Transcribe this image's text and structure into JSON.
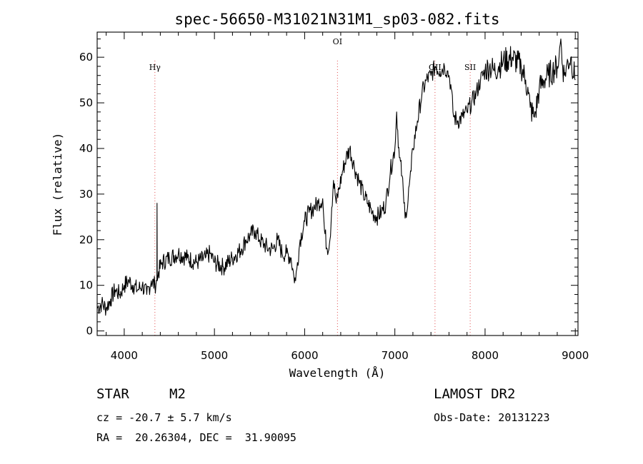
{
  "chart_data": {
    "type": "line",
    "title": "spec-56650-M31021N31M1_sp03-082.fits",
    "xlabel": "Wavelength (Å)",
    "ylabel": "Flux (relative)",
    "xlim": [
      3700,
      9030
    ],
    "ylim": [
      -1,
      65.5
    ],
    "xticks": [
      4000,
      5000,
      6000,
      7000,
      8000,
      9000
    ],
    "yticks": [
      0,
      10,
      20,
      30,
      40,
      50,
      60
    ],
    "grid": false,
    "line_color": "#000000",
    "marker_color": "#e05050",
    "lines": [
      {
        "label": "Hγ",
        "x": 4340
      },
      {
        "label": "OI",
        "x": 6364
      },
      {
        "label": "OII",
        "x": 7445
      },
      {
        "label": "SII",
        "x": 7835
      }
    ],
    "series": [
      {
        "name": "flux",
        "x": [
          3700,
          3750,
          3800,
          3850,
          3900,
          3950,
          4000,
          4050,
          4100,
          4150,
          4200,
          4250,
          4300,
          4340,
          4362,
          4364,
          4366,
          4380,
          4420,
          4500,
          4600,
          4700,
          4800,
          4900,
          4950,
          5000,
          5100,
          5200,
          5300,
          5350,
          5400,
          5450,
          5500,
          5550,
          5600,
          5650,
          5700,
          5750,
          5800,
          5850,
          5880,
          5900,
          5920,
          5950,
          6000,
          6050,
          6100,
          6150,
          6200,
          6220,
          6250,
          6280,
          6300,
          6320,
          6350,
          6380,
          6420,
          6460,
          6500,
          6550,
          6600,
          6650,
          6700,
          6750,
          6800,
          6850,
          6900,
          6950,
          7000,
          7020,
          7050,
          7080,
          7100,
          7120,
          7140,
          7160,
          7180,
          7200,
          7250,
          7300,
          7350,
          7400,
          7450,
          7500,
          7550,
          7580,
          7600,
          7620,
          7650,
          7700,
          7750,
          7800,
          7850,
          7900,
          7950,
          8000,
          8050,
          8100,
          8150,
          8200,
          8300,
          8400,
          8450,
          8480,
          8500,
          8540,
          8560,
          8600,
          8650,
          8700,
          8750,
          8800,
          8820,
          8840,
          8860,
          8880,
          8900,
          8950,
          9000
        ],
        "y": [
          5,
          6,
          5,
          7,
          9,
          8,
          10,
          11,
          10,
          9,
          10,
          8,
          11,
          10,
          11,
          28,
          11,
          13,
          15,
          16,
          17,
          16,
          15,
          16,
          17,
          15,
          14,
          16,
          18,
          20,
          21,
          22,
          20,
          19,
          18,
          18,
          20,
          17,
          17,
          16,
          12,
          11,
          15,
          20,
          24,
          26,
          27,
          28,
          29,
          22,
          18,
          20,
          27,
          33,
          28,
          31,
          35,
          38,
          40,
          36,
          33,
          30,
          28,
          26,
          25,
          26,
          28,
          35,
          40,
          48,
          38,
          34,
          28,
          26,
          27,
          32,
          35,
          40,
          46,
          52,
          55,
          56,
          58,
          57,
          58,
          57,
          56,
          54,
          47,
          46,
          47,
          48,
          50,
          52,
          55,
          57,
          58,
          57,
          58,
          59,
          60,
          58,
          55,
          52,
          49,
          47,
          48,
          53,
          55,
          56,
          57,
          58,
          60,
          64,
          58,
          56,
          58,
          60,
          55
        ]
      }
    ]
  },
  "info": {
    "object_class": "STAR",
    "subclass": "M2",
    "survey": "LAMOST DR2",
    "cz": "cz = -20.7 ± 5.7 km/s",
    "obs_date": "Obs-Date: 20131223",
    "coords": "RA =  20.26304, DEC =  31.90095"
  }
}
